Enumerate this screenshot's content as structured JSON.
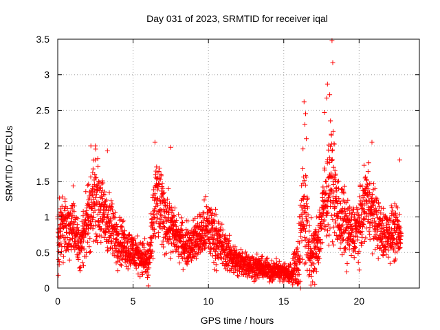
{
  "chart_data": {
    "type": "scatter",
    "title": "Day 031 of 2023, SRMTID for receiver iqal",
    "xlabel": "GPS time / hours",
    "ylabel": "SRMTID / TECUs",
    "xlim": [
      0,
      24
    ],
    "ylim": [
      0,
      3.5
    ],
    "xticks": [
      0,
      5,
      10,
      15,
      20
    ],
    "xtick_labels": [
      "0",
      "5",
      "10",
      "15",
      "20"
    ],
    "yticks": [
      0,
      0.5,
      1,
      1.5,
      2,
      2.5,
      3,
      3.5
    ],
    "ytick_labels": [
      "0",
      "0.5",
      "1",
      "1.5",
      "2",
      "2.5",
      "3",
      "3.5"
    ],
    "grid": true,
    "marker": "+",
    "series": [
      {
        "name": "SRMTID",
        "color": "#ff0000",
        "trend": [
          [
            0.0,
            0.8,
            0.35
          ],
          [
            0.5,
            0.85,
            0.3
          ],
          [
            1.0,
            0.9,
            0.3
          ],
          [
            1.5,
            0.55,
            0.2
          ],
          [
            2.0,
            1.0,
            0.35
          ],
          [
            2.5,
            1.3,
            0.4
          ],
          [
            3.0,
            1.05,
            0.3
          ],
          [
            3.5,
            0.85,
            0.3
          ],
          [
            4.0,
            0.7,
            0.25
          ],
          [
            4.5,
            0.6,
            0.2
          ],
          [
            5.0,
            0.5,
            0.2
          ],
          [
            5.5,
            0.45,
            0.15
          ],
          [
            6.0,
            0.35,
            0.2
          ],
          [
            6.2,
            0.6,
            0.25
          ],
          [
            6.5,
            1.3,
            0.4
          ],
          [
            7.0,
            1.05,
            0.35
          ],
          [
            7.5,
            0.85,
            0.25
          ],
          [
            8.0,
            0.7,
            0.2
          ],
          [
            8.5,
            0.6,
            0.2
          ],
          [
            9.0,
            0.65,
            0.2
          ],
          [
            9.5,
            0.75,
            0.25
          ],
          [
            10.0,
            0.85,
            0.3
          ],
          [
            10.5,
            0.7,
            0.25
          ],
          [
            11.0,
            0.55,
            0.2
          ],
          [
            11.5,
            0.45,
            0.15
          ],
          [
            12.0,
            0.35,
            0.15
          ],
          [
            12.5,
            0.35,
            0.12
          ],
          [
            13.0,
            0.3,
            0.12
          ],
          [
            13.5,
            0.28,
            0.1
          ],
          [
            14.0,
            0.25,
            0.1
          ],
          [
            14.5,
            0.25,
            0.1
          ],
          [
            15.0,
            0.22,
            0.1
          ],
          [
            15.5,
            0.2,
            0.1
          ],
          [
            16.0,
            0.4,
            0.3
          ],
          [
            16.3,
            1.3,
            0.6
          ],
          [
            16.7,
            0.5,
            0.3
          ],
          [
            17.0,
            0.45,
            0.25
          ],
          [
            17.3,
            0.7,
            0.3
          ],
          [
            17.8,
            1.3,
            0.4
          ],
          [
            18.2,
            1.55,
            0.5
          ],
          [
            18.6,
            1.0,
            0.35
          ],
          [
            19.0,
            0.9,
            0.35
          ],
          [
            19.5,
            0.75,
            0.25
          ],
          [
            20.0,
            0.85,
            0.3
          ],
          [
            20.5,
            1.3,
            0.35
          ],
          [
            21.0,
            1.0,
            0.3
          ],
          [
            21.5,
            0.75,
            0.25
          ],
          [
            22.0,
            0.8,
            0.25
          ],
          [
            22.5,
            0.75,
            0.25
          ],
          [
            22.8,
            0.7,
            0.25
          ]
        ],
        "outliers": [
          [
            18.2,
            3.48
          ],
          [
            18.25,
            3.17
          ],
          [
            17.9,
            2.87
          ],
          [
            17.85,
            2.67
          ],
          [
            18.05,
            2.72
          ],
          [
            16.35,
            2.62
          ],
          [
            16.45,
            2.45
          ],
          [
            16.4,
            2.3
          ],
          [
            17.7,
            2.47
          ],
          [
            18.1,
            2.35
          ],
          [
            6.45,
            2.05
          ],
          [
            7.5,
            1.98
          ],
          [
            2.2,
            2.0
          ],
          [
            2.5,
            2.0
          ],
          [
            3.3,
            1.93
          ],
          [
            20.85,
            2.05
          ],
          [
            22.7,
            1.8
          ],
          [
            16.5,
            2.1
          ],
          [
            16.1,
            0.0
          ],
          [
            6.0,
            0.03
          ]
        ]
      }
    ]
  }
}
